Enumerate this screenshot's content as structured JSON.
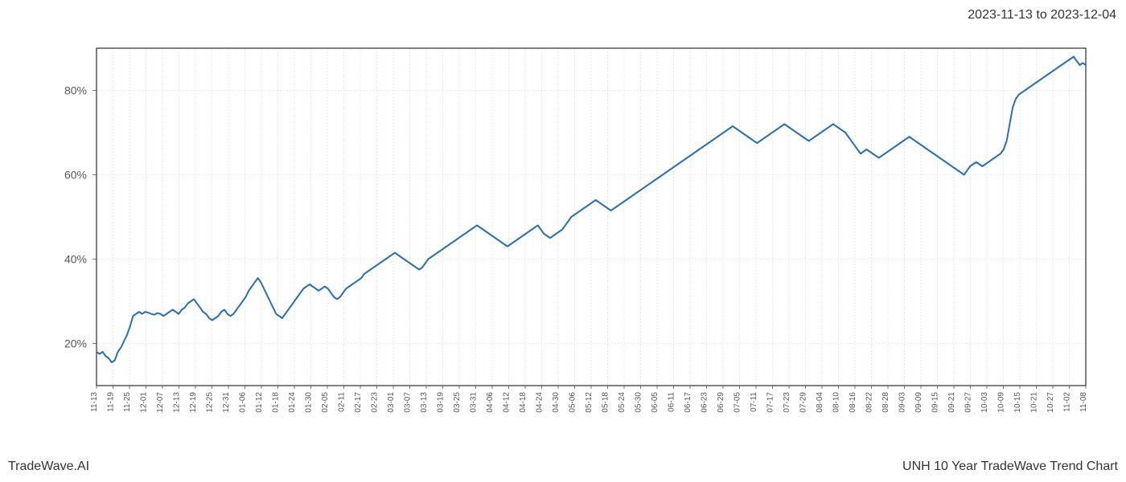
{
  "header": {
    "date_range": "2023-11-13 to 2023-12-04"
  },
  "footer": {
    "left_text": "TradeWave.AI",
    "right_text": "UNH 10 Year TradeWave Trend Chart"
  },
  "chart": {
    "type": "line",
    "background_color": "#ffffff",
    "plot_border_color": "#000000",
    "grid_color_major": "#d9d9d9",
    "grid_color_minor": "#efefef",
    "line_color": "#2e6fb0",
    "line_width": 2.0,
    "highlight": {
      "start_label": "11-13",
      "end_label": "12-04",
      "fill_color": "#c9dfc4",
      "fill_opacity": 0.5
    },
    "yaxis": {
      "min": 10,
      "max": 90,
      "ticks": [
        20,
        40,
        60,
        80
      ],
      "tick_labels": [
        "20%",
        "40%",
        "60%",
        "80%"
      ],
      "label_fontsize": 14
    },
    "xaxis": {
      "labels": [
        "11-13",
        "11-19",
        "11-25",
        "12-01",
        "12-07",
        "12-13",
        "12-19",
        "12-25",
        "12-31",
        "01-06",
        "01-12",
        "01-18",
        "01-24",
        "01-30",
        "02-05",
        "02-11",
        "02-17",
        "02-23",
        "03-01",
        "03-07",
        "03-13",
        "03-19",
        "03-25",
        "03-31",
        "04-06",
        "04-12",
        "04-18",
        "04-24",
        "04-30",
        "05-06",
        "05-12",
        "05-18",
        "05-24",
        "05-30",
        "06-05",
        "06-11",
        "06-17",
        "06-23",
        "06-29",
        "07-05",
        "07-11",
        "07-17",
        "07-23",
        "07-29",
        "08-04",
        "08-10",
        "08-16",
        "08-22",
        "08-28",
        "09-03",
        "09-09",
        "09-15",
        "09-21",
        "09-27",
        "10-03",
        "10-09",
        "10-15",
        "10-21",
        "10-27",
        "11-02",
        "11-08"
      ],
      "label_fontsize": 10,
      "label_rotation": 90
    },
    "series": {
      "name": "trend",
      "values": [
        18.0,
        17.5,
        18.0,
        17.0,
        16.5,
        15.5,
        16.0,
        18.0,
        19.0,
        20.5,
        22.0,
        24.0,
        26.5,
        27.0,
        27.5,
        27.0,
        27.5,
        27.3,
        27.0,
        26.8,
        27.2,
        27.0,
        26.5,
        27.0,
        27.5,
        28.0,
        27.5,
        27.0,
        28.0,
        28.5,
        29.5,
        30.0,
        30.5,
        29.5,
        28.5,
        27.5,
        27.0,
        26.0,
        25.5,
        26.0,
        26.5,
        27.5,
        28.0,
        27.0,
        26.5,
        27.0,
        28.0,
        29.0,
        30.0,
        31.0,
        32.5,
        33.5,
        34.5,
        35.5,
        34.5,
        33.0,
        31.5,
        30.0,
        28.5,
        27.0,
        26.5,
        26.0,
        27.0,
        28.0,
        29.0,
        30.0,
        31.0,
        32.0,
        33.0,
        33.5,
        34.0,
        33.5,
        33.0,
        32.5,
        33.0,
        33.5,
        33.0,
        32.0,
        31.0,
        30.5,
        31.0,
        32.0,
        33.0,
        33.5,
        34.0,
        34.5,
        35.0,
        35.5,
        36.5,
        37.0,
        37.5,
        38.0,
        38.5,
        39.0,
        39.5,
        40.0,
        40.5,
        41.0,
        41.5,
        41.0,
        40.5,
        40.0,
        39.5,
        39.0,
        38.5,
        38.0,
        37.5,
        38.0,
        39.0,
        40.0,
        40.5,
        41.0,
        41.5,
        42.0,
        42.5,
        43.0,
        43.5,
        44.0,
        44.5,
        45.0,
        45.5,
        46.0,
        46.5,
        47.0,
        47.5,
        48.0,
        47.5,
        47.0,
        46.5,
        46.0,
        45.5,
        45.0,
        44.5,
        44.0,
        43.5,
        43.0,
        43.5,
        44.0,
        44.5,
        45.0,
        45.5,
        46.0,
        46.5,
        47.0,
        47.5,
        48.0,
        47.0,
        46.0,
        45.5,
        45.0,
        45.5,
        46.0,
        46.5,
        47.0,
        48.0,
        49.0,
        50.0,
        50.5,
        51.0,
        51.5,
        52.0,
        52.5,
        53.0,
        53.5,
        54.0,
        53.5,
        53.0,
        52.5,
        52.0,
        51.5,
        52.0,
        52.5,
        53.0,
        53.5,
        54.0,
        54.5,
        55.0,
        55.5,
        56.0,
        56.5,
        57.0,
        57.5,
        58.0,
        58.5,
        59.0,
        59.5,
        60.0,
        60.5,
        61.0,
        61.5,
        62.0,
        62.5,
        63.0,
        63.5,
        64.0,
        64.5,
        65.0,
        65.5,
        66.0,
        66.5,
        67.0,
        67.5,
        68.0,
        68.5,
        69.0,
        69.5,
        70.0,
        70.5,
        71.0,
        71.5,
        71.0,
        70.5,
        70.0,
        69.5,
        69.0,
        68.5,
        68.0,
        67.5,
        68.0,
        68.5,
        69.0,
        69.5,
        70.0,
        70.5,
        71.0,
        71.5,
        72.0,
        71.5,
        71.0,
        70.5,
        70.0,
        69.5,
        69.0,
        68.5,
        68.0,
        68.5,
        69.0,
        69.5,
        70.0,
        70.5,
        71.0,
        71.5,
        72.0,
        71.5,
        71.0,
        70.5,
        70.0,
        69.0,
        68.0,
        67.0,
        66.0,
        65.0,
        65.5,
        66.0,
        65.5,
        65.0,
        64.5,
        64.0,
        64.5,
        65.0,
        65.5,
        66.0,
        66.5,
        67.0,
        67.5,
        68.0,
        68.5,
        69.0,
        68.5,
        68.0,
        67.5,
        67.0,
        66.5,
        66.0,
        65.5,
        65.0,
        64.5,
        64.0,
        63.5,
        63.0,
        62.5,
        62.0,
        61.5,
        61.0,
        60.5,
        60.0,
        61.0,
        62.0,
        62.5,
        63.0,
        62.5,
        62.0,
        62.5,
        63.0,
        63.5,
        64.0,
        64.5,
        65.0,
        66.0,
        68.0,
        72.0,
        76.0,
        78.0,
        79.0,
        79.5,
        80.0,
        80.5,
        81.0,
        81.5,
        82.0,
        82.5,
        83.0,
        83.5,
        84.0,
        84.5,
        85.0,
        85.5,
        86.0,
        86.5,
        87.0,
        87.5,
        88.0,
        87.0,
        86.0,
        86.5,
        86.0
      ]
    }
  }
}
